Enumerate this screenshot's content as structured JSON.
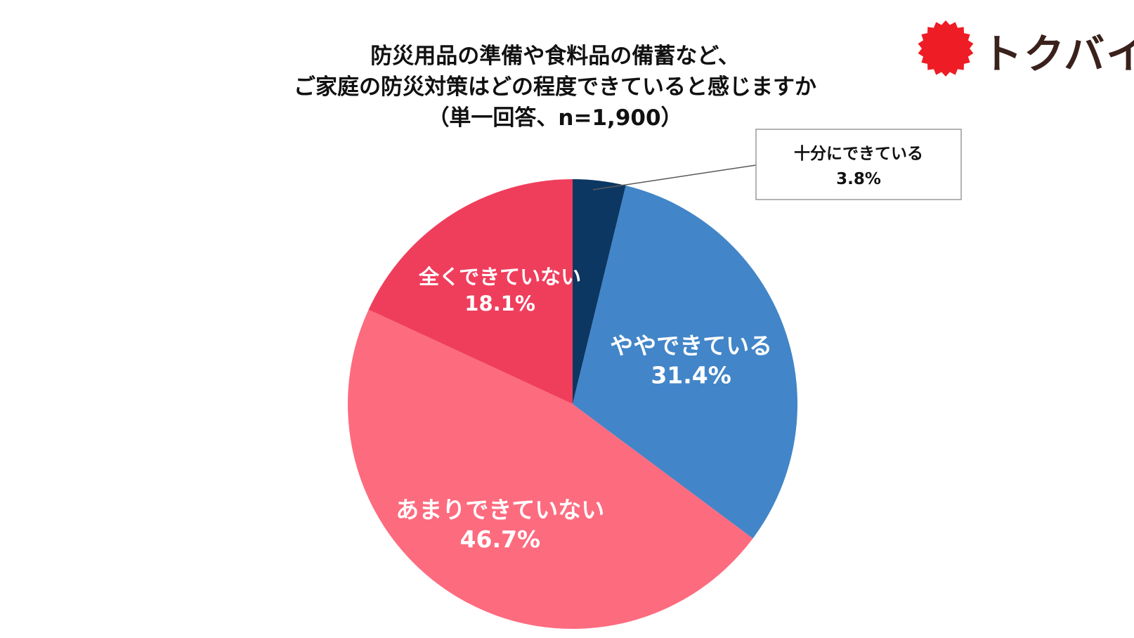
{
  "chart_data": {
    "type": "pie",
    "title_lines": [
      "防災用品の準備や食料品の備蓄など、",
      "ご家庭の防災対策はどの程度できていると感じますか",
      "（単一回答、n=1,900）"
    ],
    "slices": [
      {
        "label": "十分にできている",
        "value": 3.8,
        "value_label": "3.8%",
        "color": "#0c3762"
      },
      {
        "label": "ややできている",
        "value": 31.4,
        "value_label": "31.4%",
        "color": "#4285c8"
      },
      {
        "label": "あまりできていない",
        "value": 46.7,
        "value_label": "46.7%",
        "color": "#fd6b7f"
      },
      {
        "label": "全くできていない",
        "value": 18.1,
        "value_label": "18.1%",
        "color": "#ef3e5c"
      }
    ],
    "start_angle": "12 o'clock",
    "direction": "clockwise",
    "legend": "none",
    "first_slice_label_style": "callout box"
  },
  "logo": {
    "text": "トクバイ",
    "sun_color": "#ee1c25",
    "text_color": "#3a211b"
  }
}
